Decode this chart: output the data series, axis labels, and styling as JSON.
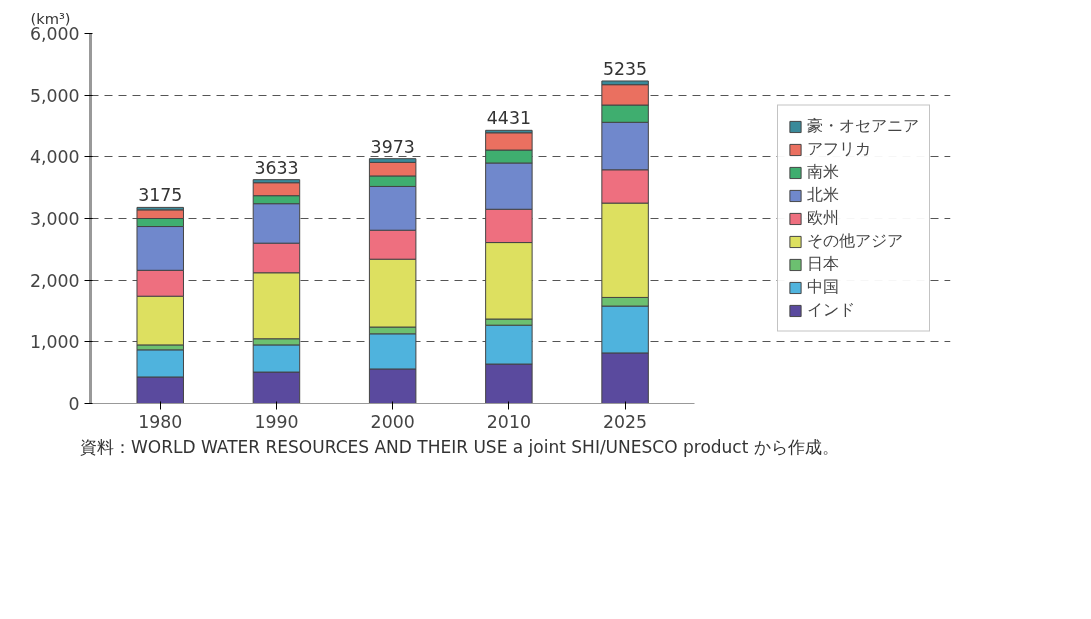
{
  "chart_data": {
    "type": "bar",
    "stacked": true,
    "ylabel": "(km³)",
    "categories": [
      "1980",
      "1990",
      "2000",
      "2010",
      "2025"
    ],
    "series": [
      {
        "name": "インド",
        "color": "#5a4a9e",
        "values": [
          430,
          510,
          560,
          640,
          820
        ]
      },
      {
        "name": "中国",
        "color": "#4fb3dd",
        "values": [
          440,
          440,
          570,
          630,
          760
        ]
      },
      {
        "name": "日本",
        "color": "#6cc070",
        "values": [
          80,
          100,
          110,
          100,
          140
        ]
      },
      {
        "name": "その他アジア",
        "color": "#dde060",
        "values": [
          790,
          1070,
          1100,
          1240,
          1530
        ]
      },
      {
        "name": "欧州",
        "color": "#ee6f7f",
        "values": [
          420,
          480,
          470,
          540,
          540
        ]
      },
      {
        "name": "北米",
        "color": "#7088cc",
        "values": [
          710,
          640,
          710,
          750,
          770
        ]
      },
      {
        "name": "南米",
        "color": "#3fae6f",
        "values": [
          130,
          130,
          170,
          210,
          280
        ]
      },
      {
        "name": "アフリカ",
        "color": "#ea7060",
        "values": [
          140,
          210,
          220,
          280,
          330
        ]
      },
      {
        "name": "豪・オセアニア",
        "color": "#3a8a9a",
        "values": [
          40,
          50,
          60,
          40,
          60
        ]
      }
    ],
    "totals": [
      "3175",
      "3633",
      "3973",
      "4431",
      "5235"
    ],
    "ylim": [
      0,
      6000
    ],
    "yticks": [
      0,
      {
        "value": 1000,
        "label": "1,000"
      },
      {
        "value": 2000,
        "label": "2,000"
      },
      {
        "value": 3000,
        "label": "3,000"
      },
      {
        "value": 4000,
        "label": "4,000"
      },
      {
        "value": 5000,
        "label": "5,000"
      },
      {
        "value": 6000,
        "label": "6,000"
      }
    ],
    "grid": "y",
    "line_style": "dashed",
    "legend": "right",
    "annotations": [
      "資料：WORLD WATER RESOURCES AND THEIR USE a joint SHI/UNESCO product から作成。"
    ]
  }
}
